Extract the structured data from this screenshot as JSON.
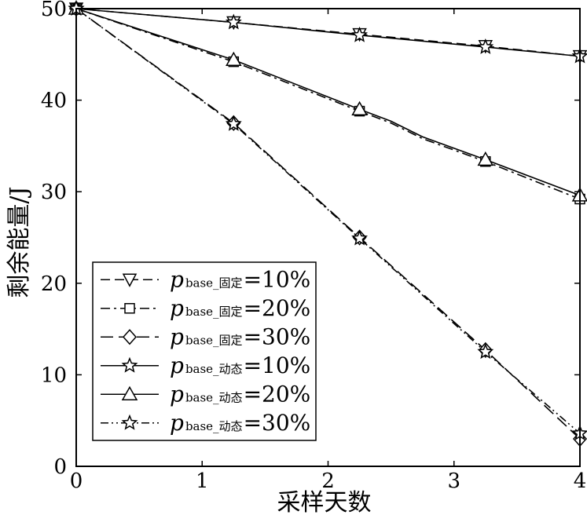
{
  "chart_data": {
    "type": "line",
    "xlabel": "采样天数",
    "ylabel": "剩余能量/J",
    "xlim": [
      0,
      4
    ],
    "ylim": [
      0,
      50
    ],
    "xticks": [
      0,
      1,
      2,
      3,
      4
    ],
    "yticks": [
      0,
      10,
      20,
      30,
      40,
      50
    ],
    "grid": false,
    "legend_position": "lower-left",
    "series": [
      {
        "name_main": "p",
        "name_sub": "base_固定",
        "name_tail": "=10%",
        "dash": "dashed",
        "marker": "triangle-down",
        "x": [
          0,
          1.25,
          2.25,
          3.25,
          4
        ],
        "y": [
          50,
          48.5,
          47.2,
          45.9,
          44.8
        ]
      },
      {
        "name_main": "p",
        "name_sub": "base_固定",
        "name_tail": "=20%",
        "dash": "dashdot",
        "marker": "square",
        "x": [
          0,
          1.25,
          2.25,
          2.5,
          2.75,
          3.25,
          4
        ],
        "y": [
          50,
          44.2,
          38.8,
          37.5,
          35.8,
          33.3,
          29.2
        ]
      },
      {
        "name_main": "p",
        "name_sub": "base_固定",
        "name_tail": "=30%",
        "dash": "dashed-long",
        "marker": "diamond",
        "x": [
          0,
          1.25,
          2.25,
          3.25,
          4
        ],
        "y": [
          50,
          37.5,
          25.0,
          12.7,
          3.0
        ]
      },
      {
        "name_main": "p",
        "name_sub": "base_动态",
        "name_tail": "=10%",
        "dash": "solid",
        "marker": "star",
        "x": [
          0,
          1.25,
          2.25,
          3.25,
          4
        ],
        "y": [
          50,
          48.5,
          47.1,
          45.8,
          44.8
        ]
      },
      {
        "name_main": "p",
        "name_sub": "base_动态",
        "name_tail": "=20%",
        "dash": "solid",
        "marker": "triangle-up",
        "x": [
          0,
          1.25,
          2.25,
          2.5,
          2.75,
          3.25,
          4
        ],
        "y": [
          50,
          44.4,
          39.0,
          37.7,
          36.0,
          33.5,
          29.6
        ]
      },
      {
        "name_main": "p",
        "name_sub": "base_动态",
        "name_tail": "=30%",
        "dash": "dashdotdot",
        "marker": "star",
        "x": [
          0,
          1.25,
          2.25,
          3.25,
          4
        ],
        "y": [
          50,
          37.4,
          24.9,
          12.5,
          3.6
        ]
      }
    ]
  }
}
